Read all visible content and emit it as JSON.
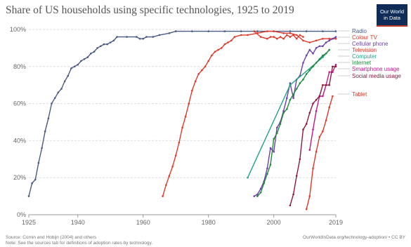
{
  "header": {
    "title": "Share of US households using specific technologies, 1925 to 2019",
    "logo_line1": "Our World",
    "logo_line2": "in Data"
  },
  "footer": {
    "source": "Source: Comin and Hobijn (2004) and others",
    "note": "Note: See the sources tab for definitions of adoption rates by technology.",
    "url": "OurWorldInData.org/technology-adoption/ • CC BY"
  },
  "chart_data": {
    "type": "line",
    "title": "Share of US households using specific technologies, 1925 to 2019",
    "xlim": [
      1925,
      2019
    ],
    "ylim": [
      0,
      100
    ],
    "x_ticks": [
      1925,
      1940,
      1960,
      1980,
      2000,
      2019
    ],
    "y_ticks": [
      0,
      20,
      40,
      60,
      80,
      100
    ],
    "y_tick_labels": [
      "0%",
      "20%",
      "40%",
      "60%",
      "80%",
      "100%"
    ],
    "grid": true,
    "legend_placement": "right",
    "series": [
      {
        "name": "Radio",
        "color": "#4a5a85",
        "points": [
          [
            1925,
            10
          ],
          [
            1926,
            17
          ],
          [
            1927,
            19
          ],
          [
            1928,
            28
          ],
          [
            1929,
            36
          ],
          [
            1930,
            45
          ],
          [
            1931,
            52
          ],
          [
            1932,
            60
          ],
          [
            1933,
            63
          ],
          [
            1934,
            66
          ],
          [
            1935,
            68
          ],
          [
            1936,
            72
          ],
          [
            1937,
            75
          ],
          [
            1938,
            79
          ],
          [
            1939,
            80
          ],
          [
            1940,
            81
          ],
          [
            1941,
            83
          ],
          [
            1942,
            84
          ],
          [
            1943,
            85
          ],
          [
            1944,
            87
          ],
          [
            1945,
            88
          ],
          [
            1946,
            90
          ],
          [
            1947,
            91
          ],
          [
            1948,
            92
          ],
          [
            1949,
            92
          ],
          [
            1950,
            93
          ],
          [
            1951,
            94
          ],
          [
            1952,
            96
          ],
          [
            1955,
            96
          ],
          [
            1958,
            96
          ],
          [
            1959,
            95
          ],
          [
            1960,
            95
          ],
          [
            1961,
            96
          ],
          [
            1963,
            96
          ],
          [
            1965,
            97
          ],
          [
            1968,
            98
          ],
          [
            1970,
            99
          ],
          [
            1975,
            99
          ],
          [
            1980,
            99
          ],
          [
            1985,
            99
          ],
          [
            1990,
            99
          ],
          [
            1995,
            99
          ],
          [
            2000,
            99
          ],
          [
            2005,
            99
          ],
          [
            2010,
            99
          ],
          [
            2015,
            99
          ],
          [
            2019,
            99
          ]
        ]
      },
      {
        "name": "Colour TV",
        "color": "#e0392b",
        "points": [
          [
            1966,
            10
          ],
          [
            1967,
            16
          ],
          [
            1968,
            21
          ],
          [
            1969,
            26
          ],
          [
            1970,
            32
          ],
          [
            1971,
            39
          ],
          [
            1972,
            47
          ],
          [
            1973,
            53
          ],
          [
            1974,
            60
          ],
          [
            1975,
            67
          ],
          [
            1976,
            72
          ],
          [
            1977,
            76
          ],
          [
            1978,
            78
          ],
          [
            1979,
            80
          ],
          [
            1980,
            83
          ],
          [
            1981,
            86
          ],
          [
            1982,
            88
          ],
          [
            1983,
            89
          ],
          [
            1984,
            90
          ],
          [
            1985,
            92
          ],
          [
            1986,
            93
          ],
          [
            1987,
            94
          ],
          [
            1988,
            96
          ],
          [
            1990,
            97
          ],
          [
            1992,
            97
          ],
          [
            1995,
            98
          ],
          [
            1998,
            99
          ],
          [
            2000,
            99
          ],
          [
            2003,
            98
          ],
          [
            2005,
            98
          ],
          [
            2007,
            97
          ],
          [
            2009,
            94
          ],
          [
            2011,
            93
          ],
          [
            2013,
            94
          ],
          [
            2015,
            95
          ],
          [
            2017,
            95
          ],
          [
            2019,
            95
          ]
        ]
      },
      {
        "name": "Cellular phone",
        "color": "#6b3fa5",
        "points": [
          [
            1994,
            10
          ],
          [
            1995,
            11
          ],
          [
            1996,
            14
          ],
          [
            1997,
            18
          ],
          [
            1998,
            25
          ],
          [
            1999,
            36
          ],
          [
            2000,
            34
          ],
          [
            2001,
            47
          ],
          [
            2002,
            50
          ],
          [
            2003,
            56
          ],
          [
            2004,
            63
          ],
          [
            2005,
            71
          ],
          [
            2006,
            63
          ],
          [
            2007,
            73
          ],
          [
            2008,
            75
          ],
          [
            2009,
            82
          ],
          [
            2010,
            86
          ],
          [
            2011,
            89
          ],
          [
            2012,
            87
          ],
          [
            2013,
            90
          ],
          [
            2014,
            91
          ],
          [
            2015,
            91
          ],
          [
            2016,
            93
          ],
          [
            2017,
            94
          ],
          [
            2018,
            95
          ],
          [
            2019,
            96
          ]
        ]
      },
      {
        "name": "Television",
        "color": "#e0392b",
        "points": [
          [
            1994,
            99
          ],
          [
            1996,
            96
          ],
          [
            1998,
            95
          ],
          [
            1999,
            96
          ],
          [
            2000,
            96
          ],
          [
            2001,
            95
          ],
          [
            2002,
            96
          ],
          [
            2003,
            95
          ],
          [
            2004,
            97
          ],
          [
            2005,
            96
          ],
          [
            2006,
            97
          ],
          [
            2007,
            95
          ],
          [
            2008,
            97
          ],
          [
            2009,
            96
          ]
        ]
      },
      {
        "name": "Computer",
        "color": "#23a38a",
        "points": [
          [
            1992,
            20
          ],
          [
            2005,
            70
          ],
          [
            2015,
            85
          ],
          [
            2017,
            89
          ]
        ]
      },
      {
        "name": "Internet",
        "color": "#1e8a3b",
        "points": [
          [
            1995,
            10
          ],
          [
            1996,
            12
          ],
          [
            1997,
            17
          ],
          [
            1998,
            22
          ],
          [
            1999,
            27
          ],
          [
            2000,
            41
          ],
          [
            2001,
            44
          ],
          [
            2002,
            49
          ],
          [
            2003,
            55
          ],
          [
            2004,
            57
          ],
          [
            2005,
            62
          ],
          [
            2006,
            65
          ],
          [
            2007,
            68
          ],
          [
            2008,
            71
          ],
          [
            2009,
            73
          ],
          [
            2010,
            76
          ],
          [
            2011,
            78
          ],
          [
            2012,
            80
          ],
          [
            2013,
            82
          ],
          [
            2014,
            84
          ],
          [
            2015,
            86
          ],
          [
            2016,
            87
          ],
          [
            2017,
            89
          ]
        ]
      },
      {
        "name": "Smartphone usage",
        "color": "#c2188a",
        "points": [
          [
            2011,
            35
          ],
          [
            2012,
            46
          ],
          [
            2013,
            56
          ],
          [
            2014,
            64
          ],
          [
            2015,
            64
          ],
          [
            2016,
            70
          ],
          [
            2017,
            77
          ],
          [
            2018,
            77
          ],
          [
            2019,
            81
          ]
        ]
      },
      {
        "name": "Social media usage",
        "color": "#8a1c3a",
        "points": [
          [
            2005,
            5
          ],
          [
            2006,
            11
          ],
          [
            2007,
            21
          ],
          [
            2008,
            30
          ],
          [
            2009,
            46
          ],
          [
            2010,
            49
          ],
          [
            2011,
            55
          ],
          [
            2012,
            60
          ],
          [
            2013,
            62
          ],
          [
            2014,
            64
          ],
          [
            2015,
            70
          ],
          [
            2016,
            70
          ],
          [
            2017,
            70
          ],
          [
            2018,
            80
          ],
          [
            2019,
            80
          ]
        ]
      },
      {
        "name": "Tablet",
        "color": "#e0392b",
        "points": [
          [
            2010,
            3
          ],
          [
            2011,
            10
          ],
          [
            2012,
            25
          ],
          [
            2013,
            34
          ],
          [
            2014,
            42
          ],
          [
            2015,
            45
          ],
          [
            2016,
            51
          ],
          [
            2017,
            58
          ],
          [
            2018,
            64
          ]
        ]
      }
    ],
    "legend": [
      {
        "label": "Radio",
        "color": "#4a5a85"
      },
      {
        "label": "Colour TV",
        "color": "#e0392b"
      },
      {
        "label": "Cellular phone",
        "color": "#6b3fa5"
      },
      {
        "label": "Television",
        "color": "#e0392b"
      },
      {
        "label": "Computer",
        "color": "#23a38a"
      },
      {
        "label": "Internet",
        "color": "#1e8a3b"
      },
      {
        "label": "Smartphone usage",
        "color": "#c2188a"
      },
      {
        "label": "Social media usage",
        "color": "#8a1c3a"
      },
      {
        "label": "Tablet",
        "color": "#e0392b"
      }
    ]
  }
}
